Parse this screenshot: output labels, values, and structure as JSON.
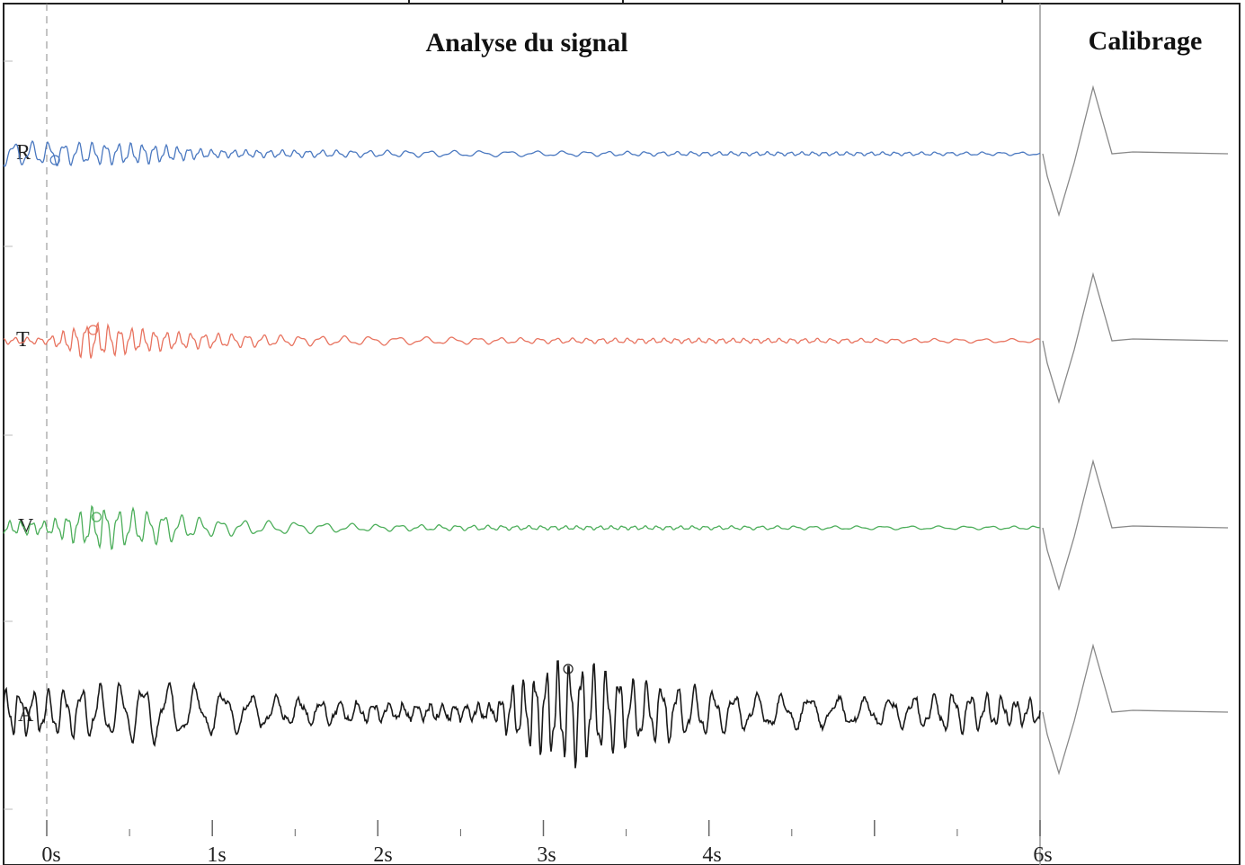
{
  "chart_data": {
    "type": "line",
    "title": "Analyse du signal",
    "calibration_title": "Calibrage",
    "xlim": [
      0,
      6
    ],
    "x_ticks": [
      "0s",
      "1s",
      "2s",
      "3s",
      "4s",
      "6s"
    ],
    "grid": false,
    "series": [
      {
        "name": "R",
        "color": "#4a78c0",
        "event_time": 0.05,
        "envelope": [
          [
            0,
            0.35
          ],
          [
            0.6,
            0.3
          ],
          [
            1.0,
            0.12
          ],
          [
            2.0,
            0.1
          ],
          [
            3.0,
            0.08
          ],
          [
            4.0,
            0.06
          ],
          [
            6.0,
            0.05
          ]
        ]
      },
      {
        "name": "T",
        "color": "#e8735f",
        "event_time": 0.28,
        "envelope": [
          [
            0,
            0.1
          ],
          [
            0.25,
            0.55
          ],
          [
            0.45,
            0.4
          ],
          [
            0.8,
            0.25
          ],
          [
            1.5,
            0.15
          ],
          [
            3.0,
            0.08
          ],
          [
            6.0,
            0.06
          ]
        ]
      },
      {
        "name": "V",
        "color": "#4cae5a",
        "event_time": 0.3,
        "envelope": [
          [
            0,
            0.2
          ],
          [
            0.3,
            0.65
          ],
          [
            0.7,
            0.45
          ],
          [
            1.0,
            0.25
          ],
          [
            2.0,
            0.1
          ],
          [
            3.0,
            0.06
          ],
          [
            6.0,
            0.05
          ]
        ]
      },
      {
        "name": "A",
        "color": "#1a1a1a",
        "event_time": 3.15,
        "envelope": [
          [
            0,
            1.0
          ],
          [
            0.6,
            1.4
          ],
          [
            1.2,
            0.8
          ],
          [
            2.0,
            0.4
          ],
          [
            2.7,
            0.35
          ],
          [
            2.8,
            1.2
          ],
          [
            3.15,
            2.4
          ],
          [
            3.6,
            1.4
          ],
          [
            4.2,
            0.8
          ],
          [
            5.0,
            0.6
          ],
          [
            5.5,
            0.9
          ],
          [
            6.0,
            0.5
          ]
        ]
      }
    ]
  }
}
